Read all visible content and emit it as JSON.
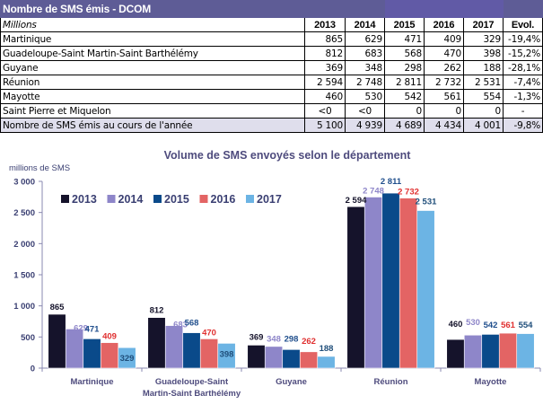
{
  "table": {
    "title": "Nombre de SMS émis - DCOM",
    "unit_label": "Millions",
    "columns": [
      "2013",
      "2014",
      "2015",
      "2016",
      "2017",
      "Evol."
    ],
    "rows": [
      {
        "label": "Martinique",
        "values": [
          "865",
          "629",
          "471",
          "409",
          "329",
          "-19,4%"
        ]
      },
      {
        "label": "Guadeloupe-Saint Martin-Saint Barthélémy",
        "values": [
          "812",
          "683",
          "568",
          "470",
          "398",
          "-15,2%"
        ]
      },
      {
        "label": "Guyane",
        "values": [
          "369",
          "348",
          "298",
          "262",
          "188",
          "-28,1%"
        ]
      },
      {
        "label": "Réunion",
        "values": [
          "2 594",
          "2 748",
          "2 811",
          "2 732",
          "2 531",
          "-7,4%"
        ]
      },
      {
        "label": "Mayotte",
        "values": [
          "460",
          "530",
          "542",
          "561",
          "554",
          "-1,3%"
        ]
      },
      {
        "label": "Saint Pierre et Miquelon",
        "values": [
          "<0",
          "<0",
          "0",
          "0",
          "0",
          "-"
        ]
      }
    ],
    "total": {
      "label": "Nombre de SMS émis au cours de l'année",
      "values": [
        "5 100",
        "4 939",
        "4 689",
        "4 434",
        "4 001",
        "-9,8%"
      ]
    },
    "colors": {
      "header_bg": "#5e5c96",
      "header_accent_bg": "#615aa6",
      "total_bg": "#dfdeec"
    }
  },
  "chart_data": {
    "type": "bar",
    "title": "Volume de SMS envoyés selon le département",
    "ylabel": "millions de SMS",
    "xlabel": "",
    "ylim": [
      0,
      3000
    ],
    "yticks": [
      0,
      500,
      1000,
      1500,
      2000,
      2500,
      3000
    ],
    "ytick_labels": [
      "0",
      "500",
      "1 000",
      "1 500",
      "2 000",
      "2 500",
      "3 000"
    ],
    "grid": false,
    "legend_position": "top-left",
    "categories": [
      "Martinique",
      "Guadeloupe-Saint Martin-Saint Barthélémy",
      "Guyane",
      "Réunion",
      "Mayotte"
    ],
    "category_label_lines": [
      [
        "Martinique"
      ],
      [
        "Guadeloupe-Saint",
        "Martin-Saint Barthélémy"
      ],
      [
        "Guyane"
      ],
      [
        "Réunion"
      ],
      [
        "Mayotte"
      ]
    ],
    "series": [
      {
        "name": "2013",
        "color": "#15132b",
        "label_color": "#15132b",
        "values": [
          865,
          812,
          369,
          2594,
          460
        ],
        "labels": [
          "865",
          "812",
          "369",
          "2 594",
          "460"
        ]
      },
      {
        "name": "2014",
        "color": "#8e86c9",
        "label_color": "#8e86c9",
        "values": [
          629,
          683,
          348,
          2748,
          530
        ],
        "labels": [
          "629",
          "683",
          "348",
          "2 748",
          "530"
        ]
      },
      {
        "name": "2015",
        "color": "#0a4a8a",
        "label_color": "#1f4e8c",
        "values": [
          471,
          568,
          298,
          2811,
          542
        ],
        "labels": [
          "471",
          "568",
          "298",
          "2 811",
          "542"
        ]
      },
      {
        "name": "2016",
        "color": "#e36464",
        "label_color": "#e03030",
        "values": [
          409,
          470,
          262,
          2732,
          561
        ],
        "labels": [
          "409",
          "470",
          "262",
          "2 732",
          "561"
        ]
      },
      {
        "name": "2017",
        "color": "#6cb4e4",
        "label_color": "#1f4e7a",
        "values": [
          329,
          398,
          188,
          2531,
          554
        ],
        "labels": [
          "329",
          "398",
          "188",
          "2 531",
          "554"
        ]
      }
    ]
  }
}
